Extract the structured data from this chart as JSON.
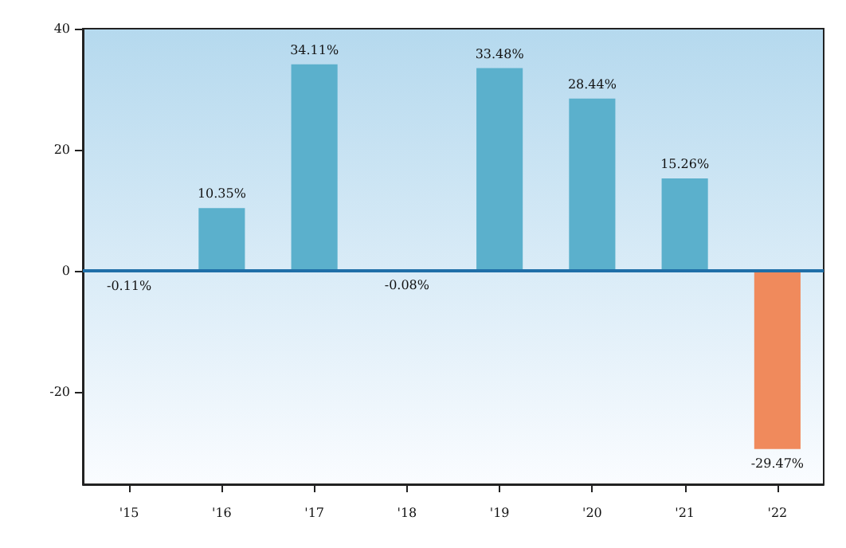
{
  "chart_data": {
    "type": "bar",
    "categories": [
      "'15",
      "'16",
      "'17",
      "'18",
      "'19",
      "'20",
      "'21",
      "'22"
    ],
    "values": [
      -0.11,
      10.35,
      34.11,
      -0.08,
      33.48,
      28.44,
      15.26,
      -29.47
    ],
    "colors": [
      "#5bb0cc",
      "#5bb0cc",
      "#5bb0cc",
      "#5bb0cc",
      "#5bb0cc",
      "#5bb0cc",
      "#5bb0cc",
      "#f08a5c"
    ],
    "value_labels": [
      "-0.11%",
      "10.35%",
      "34.11%",
      "-0.08%",
      "33.48%",
      "28.44%",
      "15.26%",
      "-29.47%"
    ],
    "ylim": [
      -35.3,
      40
    ],
    "yticks": [
      -20,
      0,
      20,
      40
    ],
    "grid": false,
    "ref_lines": [
      {
        "axis": "y",
        "value": 0,
        "color": "#1f6fa8",
        "line_style": "solid"
      }
    ]
  }
}
